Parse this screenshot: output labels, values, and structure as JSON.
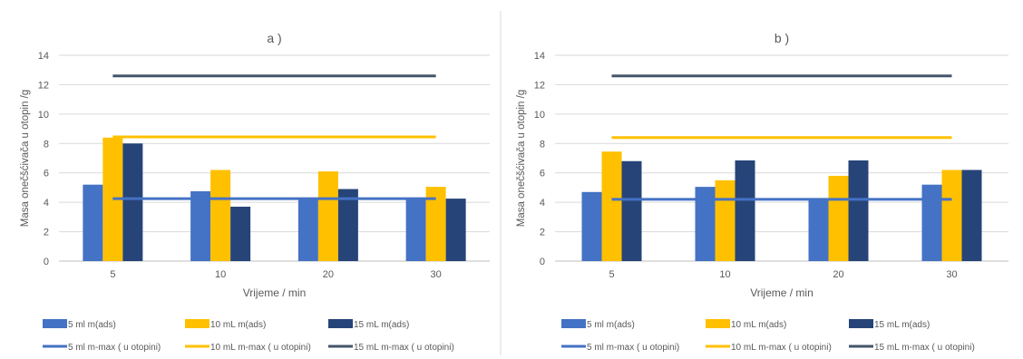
{
  "colors": {
    "bar_5ml": "#4472C4",
    "bar_10ml": "#FFC000",
    "bar_15ml": "#264478",
    "line_5ml": "#4472C4",
    "line_10ml": "#FFC000",
    "line_15ml": "#44546A",
    "grid": "#D9D9D9",
    "text": "#595959",
    "divider": "#D9D9D9"
  },
  "chart_data": [
    {
      "type": "bar",
      "title": "a )",
      "xlabel": "Vrijeme / min",
      "ylabel": "Masa onečšćivača u otopin /g",
      "categories": [
        "5",
        "10",
        "20",
        "30"
      ],
      "ylim": [
        0,
        14
      ],
      "yticks": [
        "0",
        "2",
        "4",
        "6",
        "8",
        "10",
        "12",
        "14"
      ],
      "grid": true,
      "legend_position": "bottom",
      "series": [
        {
          "name": "5 ml m(ads)",
          "kind": "bar",
          "values": [
            5.2,
            4.75,
            4.3,
            4.3
          ]
        },
        {
          "name": "10 mL m(ads)",
          "kind": "bar",
          "values": [
            8.4,
            6.2,
            6.1,
            5.05
          ]
        },
        {
          "name": "15 mL m(ads)",
          "kind": "bar",
          "values": [
            8.0,
            3.7,
            4.9,
            4.25
          ]
        }
      ],
      "lines": [
        {
          "name": "5 ml m-max ( u otopini)",
          "kind": "line",
          "values": [
            4.25,
            4.25,
            4.25,
            4.25
          ]
        },
        {
          "name": "10 mL m-max ( u otopini)",
          "kind": "line",
          "values": [
            8.45,
            8.45,
            8.45,
            8.45
          ]
        },
        {
          "name": "15 mL m-max ( u otopini)",
          "kind": "line",
          "values": [
            12.6,
            12.6,
            12.6,
            12.6
          ]
        }
      ]
    },
    {
      "type": "bar",
      "title": "b )",
      "xlabel": "Vrijeme / min",
      "ylabel": "Masa onečšćivača u otopin /g",
      "categories": [
        "5",
        "10",
        "20",
        "30"
      ],
      "ylim": [
        0,
        14
      ],
      "yticks": [
        "0",
        "2",
        "4",
        "6",
        "8",
        "10",
        "12",
        "14"
      ],
      "grid": true,
      "legend_position": "bottom",
      "series": [
        {
          "name": "5 ml m(ads)",
          "kind": "bar",
          "values": [
            4.7,
            5.05,
            4.2,
            5.2
          ]
        },
        {
          "name": "10 mL m(ads)",
          "kind": "bar",
          "values": [
            7.45,
            5.5,
            5.8,
            6.2
          ]
        },
        {
          "name": "15 mL m(ads)",
          "kind": "bar",
          "values": [
            6.8,
            6.85,
            6.85,
            6.2
          ]
        }
      ],
      "lines": [
        {
          "name": "5 ml m-max ( u otopini)",
          "kind": "line",
          "values": [
            4.2,
            4.2,
            4.2,
            4.2
          ]
        },
        {
          "name": "10 mL m-max ( u otopini)",
          "kind": "line",
          "values": [
            8.4,
            8.4,
            8.4,
            8.4
          ]
        },
        {
          "name": "15 mL m-max ( u otopini)",
          "kind": "line",
          "values": [
            12.6,
            12.6,
            12.6,
            12.6
          ]
        }
      ]
    }
  ]
}
